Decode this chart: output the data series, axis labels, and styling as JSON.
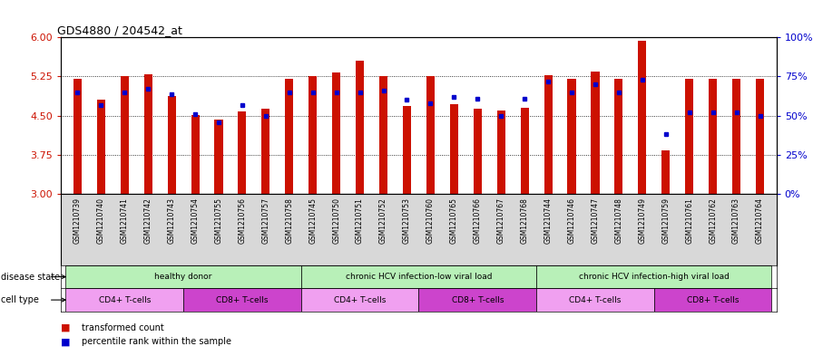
{
  "title": "GDS4880 / 204542_at",
  "samples": [
    "GSM1210739",
    "GSM1210740",
    "GSM1210741",
    "GSM1210742",
    "GSM1210743",
    "GSM1210754",
    "GSM1210755",
    "GSM1210756",
    "GSM1210757",
    "GSM1210758",
    "GSM1210745",
    "GSM1210750",
    "GSM1210751",
    "GSM1210752",
    "GSM1210753",
    "GSM1210760",
    "GSM1210765",
    "GSM1210766",
    "GSM1210767",
    "GSM1210768",
    "GSM1210744",
    "GSM1210746",
    "GSM1210747",
    "GSM1210748",
    "GSM1210749",
    "GSM1210759",
    "GSM1210761",
    "GSM1210762",
    "GSM1210763",
    "GSM1210764"
  ],
  "transformed_count": [
    5.2,
    4.8,
    5.25,
    5.3,
    4.88,
    4.52,
    4.42,
    4.58,
    4.63,
    5.2,
    5.25,
    5.33,
    5.55,
    5.25,
    4.68,
    5.25,
    4.72,
    4.63,
    4.6,
    4.65,
    5.28,
    5.2,
    5.35,
    5.2,
    5.93,
    3.83,
    5.21,
    5.2,
    5.2,
    5.2
  ],
  "percentile_rank": [
    65,
    57,
    65,
    67,
    64,
    51,
    46,
    57,
    50,
    65,
    65,
    65,
    65,
    66,
    60,
    58,
    62,
    61,
    50,
    61,
    72,
    65,
    70,
    65,
    73,
    38,
    52,
    52,
    52,
    50
  ],
  "ylim_left": [
    3.0,
    6.0
  ],
  "ylim_right": [
    0,
    100
  ],
  "yticks_left": [
    3.0,
    3.75,
    4.5,
    5.25,
    6.0
  ],
  "yticks_right": [
    0,
    25,
    50,
    75,
    100
  ],
  "ytick_labels_right": [
    "0%",
    "25%",
    "50%",
    "75%",
    "100%"
  ],
  "bar_color": "#cc1100",
  "dot_color": "#0000cc",
  "baseline": 3.0,
  "disease_state_label": "disease state",
  "cell_type_label": "cell type",
  "legend_bar": "transformed count",
  "legend_dot": "percentile rank within the sample",
  "tick_color_left": "#cc1100",
  "tick_color_right": "#0000cc",
  "ds_groups": [
    {
      "label": "healthy donor",
      "start": 0,
      "end": 9,
      "color": "#b8f0b8"
    },
    {
      "label": "chronic HCV infection-low viral load",
      "start": 10,
      "end": 19,
      "color": "#b8f0b8"
    },
    {
      "label": "chronic HCV infection-high viral load",
      "start": 20,
      "end": 29,
      "color": "#b8f0b8"
    }
  ],
  "ct_groups": [
    {
      "label": "CD4+ T-cells",
      "start": 0,
      "end": 4,
      "color": "#f0a0f0"
    },
    {
      "label": "CD8+ T-cells",
      "start": 5,
      "end": 9,
      "color": "#cc44cc"
    },
    {
      "label": "CD4+ T-cells",
      "start": 10,
      "end": 14,
      "color": "#f0a0f0"
    },
    {
      "label": "CD8+ T-cells",
      "start": 15,
      "end": 19,
      "color": "#cc44cc"
    },
    {
      "label": "CD4+ T-cells",
      "start": 20,
      "end": 24,
      "color": "#f0a0f0"
    },
    {
      "label": "CD8+ T-cells",
      "start": 25,
      "end": 29,
      "color": "#cc44cc"
    }
  ]
}
